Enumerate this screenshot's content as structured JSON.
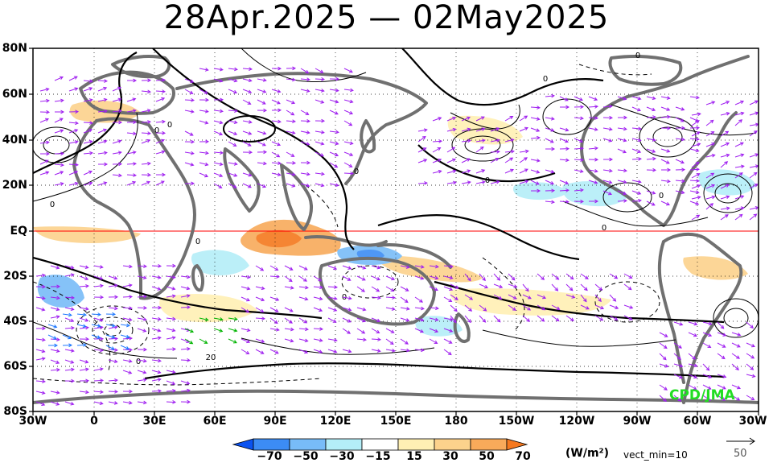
{
  "title": "28Apr.2025 — 02May2025",
  "lat_labels": [
    "80N",
    "60N",
    "40N",
    "20N",
    "EQ",
    "20S",
    "40S",
    "60S",
    "80S"
  ],
  "lon_labels": [
    "30W",
    "0",
    "30E",
    "60E",
    "90E",
    "120E",
    "150E",
    "180",
    "150W",
    "120W",
    "90W",
    "60W",
    "30W"
  ],
  "colorbar": {
    "labels": [
      "−70",
      "−50",
      "−30",
      "−15",
      "15",
      "30",
      "50",
      "70"
    ],
    "colors": [
      "#0a52f0",
      "#3c8cf5",
      "#78bcf8",
      "#b4eef8",
      "#ffffff",
      "#fff0b4",
      "#fcd28c",
      "#f8aa5a",
      "#f5781e"
    ],
    "units": "(W/m²)",
    "vect_min": "vect_min=10"
  },
  "reference_vector": {
    "value": "50"
  },
  "credit": "CPD/JMA",
  "contour_labels": [
    "0",
    "0",
    "0",
    "0",
    "0",
    "0",
    "0",
    "0",
    "0",
    "0",
    "0",
    "20",
    "0"
  ],
  "colors": {
    "land": "#707070",
    "vectors": "#a020f0",
    "vectors_strong_1": "#1e78ff",
    "vectors_strong_2": "#00b400",
    "equator": "#ff0000"
  }
}
